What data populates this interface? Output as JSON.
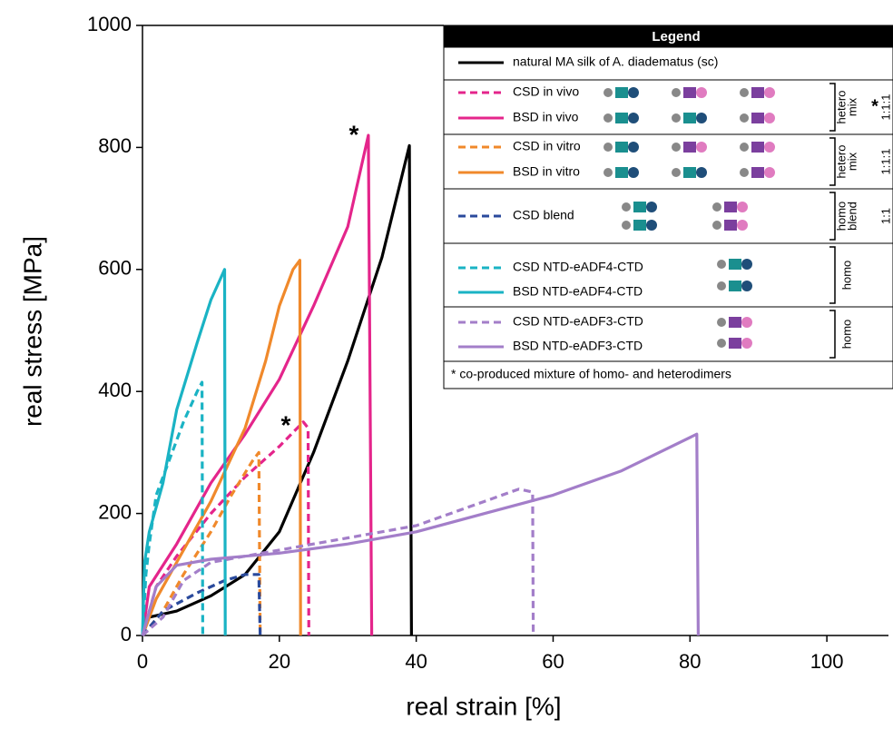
{
  "chart_data": {
    "type": "line",
    "x_label": "real strain [%]",
    "y_label": "real stress [MPa]",
    "xlim": [
      0,
      109
    ],
    "ylim": [
      0,
      1000
    ],
    "xticks": [
      0,
      20,
      40,
      60,
      80,
      100
    ],
    "yticks": [
      0,
      200,
      400,
      600,
      800,
      1000
    ],
    "annotations": [
      "*",
      "*"
    ],
    "series": [
      {
        "name": "natural MA silk of A. diadematus (sc)",
        "color": "#000000",
        "dash": false,
        "x": [
          0,
          1,
          5,
          10,
          15,
          20,
          25,
          30,
          35,
          39,
          39.3
        ],
        "values": [
          0,
          30,
          40,
          65,
          100,
          170,
          300,
          450,
          620,
          803,
          0
        ]
      },
      {
        "name": "CSD in vivo",
        "color": "#e4258b",
        "dash": true,
        "x": [
          0,
          2,
          5,
          10,
          15,
          20,
          23.5,
          24.2,
          24.3
        ],
        "values": [
          0,
          80,
          130,
          200,
          260,
          310,
          350,
          340,
          0
        ]
      },
      {
        "name": "BSD in vivo",
        "color": "#e4258b",
        "dash": false,
        "x": [
          0,
          1,
          5,
          10,
          15,
          20,
          25,
          30,
          33,
          33.5
        ],
        "values": [
          0,
          80,
          150,
          250,
          330,
          420,
          540,
          670,
          820,
          0
        ]
      },
      {
        "name": "CSD in vitro",
        "color": "#f0892b",
        "dash": true,
        "x": [
          0,
          3,
          6,
          10,
          13,
          16,
          17,
          17.2
        ],
        "values": [
          0,
          40,
          100,
          170,
          230,
          285,
          300,
          0
        ]
      },
      {
        "name": "BSD in vitro",
        "color": "#f0892b",
        "dash": false,
        "x": [
          0,
          2,
          5,
          10,
          15,
          18,
          20,
          22,
          23,
          23.1
        ],
        "values": [
          0,
          60,
          120,
          220,
          340,
          450,
          540,
          600,
          615,
          0
        ]
      },
      {
        "name": "CSD blend",
        "color": "#2a4a9c",
        "dash": true,
        "x": [
          0,
          3,
          8,
          12,
          15,
          17,
          17.2
        ],
        "values": [
          0,
          40,
          70,
          90,
          100,
          100,
          0
        ]
      },
      {
        "name": "CSD NTD-eADF4-CTD",
        "color": "#1ab3c4",
        "dash": true,
        "x": [
          0,
          0.5,
          1,
          2,
          4,
          6,
          8,
          8.7,
          8.8
        ],
        "values": [
          0,
          100,
          150,
          230,
          290,
          350,
          400,
          415,
          0
        ]
      },
      {
        "name": "BSD NTD-eADF4-CTD",
        "color": "#1ab3c4",
        "dash": false,
        "x": [
          0,
          0.3,
          1,
          3,
          5,
          8,
          10,
          12,
          12.1
        ],
        "values": [
          0,
          120,
          170,
          250,
          370,
          480,
          550,
          600,
          0
        ]
      },
      {
        "name": "CSD NTD-eADF3-CTD",
        "color": "#a37ec9",
        "dash": true,
        "x": [
          0,
          3,
          6,
          10,
          20,
          30,
          40,
          50,
          55,
          57,
          57.1
        ],
        "values": [
          0,
          30,
          90,
          120,
          140,
          160,
          180,
          220,
          240,
          235,
          0
        ]
      },
      {
        "name": "BSD NTD-eADF3-CTD",
        "color": "#a37ec9",
        "dash": false,
        "x": [
          0,
          2,
          5,
          10,
          20,
          30,
          40,
          50,
          60,
          70,
          81,
          81.2
        ],
        "values": [
          0,
          80,
          115,
          125,
          135,
          150,
          170,
          200,
          230,
          270,
          330,
          0
        ]
      }
    ],
    "legend": {
      "title": "Legend",
      "groups": [
        {
          "label": [
            "hetero",
            "mix"
          ],
          "ratio": "1:1:1",
          "note": "*"
        },
        {
          "label": [
            "hetero",
            "mix"
          ],
          "ratio": "1:1:1"
        },
        {
          "label": [
            "homo",
            "blend"
          ],
          "ratio": "1:1"
        },
        {
          "label": [
            "homo"
          ]
        },
        {
          "label": [
            "homo"
          ]
        }
      ],
      "footnote": "* co-produced mixture of homo- and heterodimers"
    }
  }
}
